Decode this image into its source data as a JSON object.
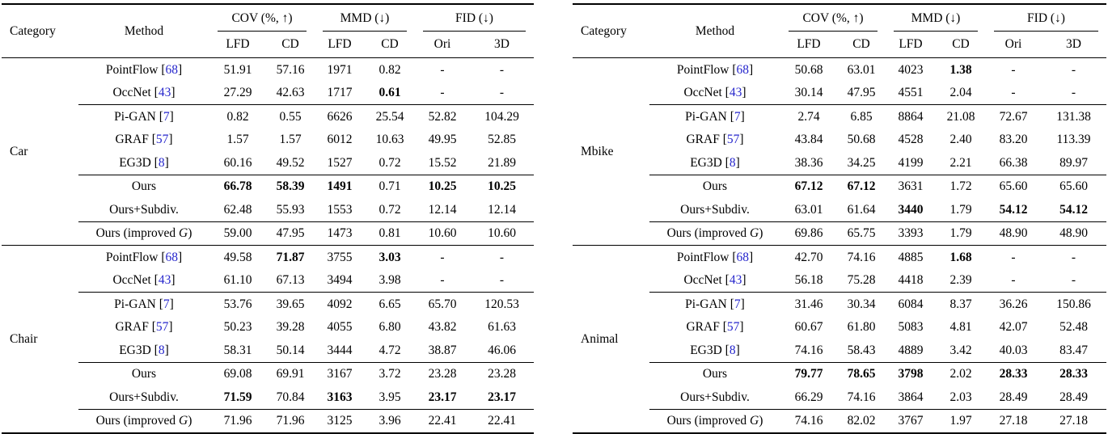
{
  "colors": {
    "citation": "#2626cc",
    "text": "#000000",
    "background": "#ffffff"
  },
  "header": {
    "category": "Category",
    "method": "Method",
    "groups": [
      {
        "label": "COV (%, ↑)"
      },
      {
        "label": "MMD (↓)"
      },
      {
        "label": "FID (↓)"
      }
    ],
    "subcols": [
      "LFD",
      "CD",
      "LFD",
      "CD",
      "Ori",
      "3D"
    ]
  },
  "tables": [
    {
      "name": "left",
      "sections": [
        {
          "category": "Car",
          "groups": [
            [
              {
                "method": "PointFlow",
                "ref": "68",
                "vals": [
                  "51.91",
                  "57.16",
                  "1971",
                  "0.82",
                  "-",
                  "-"
                ],
                "bold": []
              },
              {
                "method": "OccNet",
                "ref": "43",
                "vals": [
                  "27.29",
                  "42.63",
                  "1717",
                  "0.61",
                  "-",
                  "-"
                ],
                "bold": [
                  3
                ]
              }
            ],
            [
              {
                "method": "Pi-GAN",
                "ref": "7",
                "vals": [
                  "0.82",
                  "0.55",
                  "6626",
                  "25.54",
                  "52.82",
                  "104.29"
                ],
                "bold": []
              },
              {
                "method": "GRAF",
                "ref": "57",
                "vals": [
                  "1.57",
                  "1.57",
                  "6012",
                  "10.63",
                  "49.95",
                  "52.85"
                ],
                "bold": []
              },
              {
                "method": "EG3D",
                "ref": "8",
                "vals": [
                  "60.16",
                  "49.52",
                  "1527",
                  "0.72",
                  "15.52",
                  "21.89"
                ],
                "bold": []
              }
            ],
            [
              {
                "method": "Ours",
                "vals": [
                  "66.78",
                  "58.39",
                  "1491",
                  "0.71",
                  "10.25",
                  "10.25"
                ],
                "bold": [
                  0,
                  1,
                  2,
                  4,
                  5
                ]
              },
              {
                "method": "Ours+Subdiv.",
                "vals": [
                  "62.48",
                  "55.93",
                  "1553",
                  "0.72",
                  "12.14",
                  "12.14"
                ],
                "bold": []
              }
            ],
            [
              {
                "method": "Ours (improved G)",
                "gmath": true,
                "vals": [
                  "59.00",
                  "47.95",
                  "1473",
                  "0.81",
                  "10.60",
                  "10.60"
                ],
                "bold": []
              }
            ]
          ]
        },
        {
          "category": "Chair",
          "groups": [
            [
              {
                "method": "PointFlow",
                "ref": "68",
                "vals": [
                  "49.58",
                  "71.87",
                  "3755",
                  "3.03",
                  "-",
                  "-"
                ],
                "bold": [
                  1,
                  3
                ]
              },
              {
                "method": "OccNet",
                "ref": "43",
                "vals": [
                  "61.10",
                  "67.13",
                  "3494",
                  "3.98",
                  "-",
                  "-"
                ],
                "bold": []
              }
            ],
            [
              {
                "method": "Pi-GAN",
                "ref": "7",
                "vals": [
                  "53.76",
                  "39.65",
                  "4092",
                  "6.65",
                  "65.70",
                  "120.53"
                ],
                "bold": []
              },
              {
                "method": "GRAF",
                "ref": "57",
                "vals": [
                  "50.23",
                  "39.28",
                  "4055",
                  "6.80",
                  "43.82",
                  "61.63"
                ],
                "bold": []
              },
              {
                "method": "EG3D",
                "ref": "8",
                "vals": [
                  "58.31",
                  "50.14",
                  "3444",
                  "4.72",
                  "38.87",
                  "46.06"
                ],
                "bold": []
              }
            ],
            [
              {
                "method": "Ours",
                "vals": [
                  "69.08",
                  "69.91",
                  "3167",
                  "3.72",
                  "23.28",
                  "23.28"
                ],
                "bold": []
              },
              {
                "method": "Ours+Subdiv.",
                "vals": [
                  "71.59",
                  "70.84",
                  "3163",
                  "3.95",
                  "23.17",
                  "23.17"
                ],
                "bold": [
                  0,
                  2,
                  4,
                  5
                ]
              }
            ],
            [
              {
                "method": "Ours (improved G)",
                "gmath": true,
                "vals": [
                  "71.96",
                  "71.96",
                  "3125",
                  "3.96",
                  "22.41",
                  "22.41"
                ],
                "bold": []
              }
            ]
          ]
        }
      ]
    },
    {
      "name": "right",
      "sections": [
        {
          "category": "Mbike",
          "groups": [
            [
              {
                "method": "PointFlow",
                "ref": "68",
                "vals": [
                  "50.68",
                  "63.01",
                  "4023",
                  "1.38",
                  "-",
                  "-"
                ],
                "bold": [
                  3
                ]
              },
              {
                "method": "OccNet",
                "ref": "43",
                "vals": [
                  "30.14",
                  "47.95",
                  "4551",
                  "2.04",
                  "-",
                  "-"
                ],
                "bold": []
              }
            ],
            [
              {
                "method": "Pi-GAN",
                "ref": "7",
                "vals": [
                  "2.74",
                  "6.85",
                  "8864",
                  "21.08",
                  "72.67",
                  "131.38"
                ],
                "bold": []
              },
              {
                "method": "GRAF",
                "ref": "57",
                "vals": [
                  "43.84",
                  "50.68",
                  "4528",
                  "2.40",
                  "83.20",
                  "113.39"
                ],
                "bold": []
              },
              {
                "method": "EG3D",
                "ref": "8",
                "vals": [
                  "38.36",
                  "34.25",
                  "4199",
                  "2.21",
                  "66.38",
                  "89.97"
                ],
                "bold": []
              }
            ],
            [
              {
                "method": "Ours",
                "vals": [
                  "67.12",
                  "67.12",
                  "3631",
                  "1.72",
                  "65.60",
                  "65.60"
                ],
                "bold": [
                  0,
                  1
                ]
              },
              {
                "method": "Ours+Subdiv.",
                "vals": [
                  "63.01",
                  "61.64",
                  "3440",
                  "1.79",
                  "54.12",
                  "54.12"
                ],
                "bold": [
                  2,
                  4,
                  5
                ]
              }
            ],
            [
              {
                "method": "Ours (improved G)",
                "gmath": true,
                "vals": [
                  "69.86",
                  "65.75",
                  "3393",
                  "1.79",
                  "48.90",
                  "48.90"
                ],
                "bold": []
              }
            ]
          ]
        },
        {
          "category": "Animal",
          "groups": [
            [
              {
                "method": "PointFlow",
                "ref": "68",
                "vals": [
                  "42.70",
                  "74.16",
                  "4885",
                  "1.68",
                  "-",
                  "-"
                ],
                "bold": [
                  3
                ]
              },
              {
                "method": "OccNet",
                "ref": "43",
                "vals": [
                  "56.18",
                  "75.28",
                  "4418",
                  "2.39",
                  "-",
                  "-"
                ],
                "bold": []
              }
            ],
            [
              {
                "method": "Pi-GAN",
                "ref": "7",
                "vals": [
                  "31.46",
                  "30.34",
                  "6084",
                  "8.37",
                  "36.26",
                  "150.86"
                ],
                "bold": []
              },
              {
                "method": "GRAF",
                "ref": "57",
                "vals": [
                  "60.67",
                  "61.80",
                  "5083",
                  "4.81",
                  "42.07",
                  "52.48"
                ],
                "bold": []
              },
              {
                "method": "EG3D",
                "ref": "8",
                "vals": [
                  "74.16",
                  "58.43",
                  "4889",
                  "3.42",
                  "40.03",
                  "83.47"
                ],
                "bold": []
              }
            ],
            [
              {
                "method": "Ours",
                "vals": [
                  "79.77",
                  "78.65",
                  "3798",
                  "2.02",
                  "28.33",
                  "28.33"
                ],
                "bold": [
                  0,
                  1,
                  2,
                  4,
                  5
                ]
              },
              {
                "method": "Ours+Subdiv.",
                "vals": [
                  "66.29",
                  "74.16",
                  "3864",
                  "2.03",
                  "28.49",
                  "28.49"
                ],
                "bold": []
              }
            ],
            [
              {
                "method": "Ours (improved G)",
                "gmath": true,
                "vals": [
                  "74.16",
                  "82.02",
                  "3767",
                  "1.97",
                  "27.18",
                  "27.18"
                ],
                "bold": []
              }
            ]
          ]
        }
      ]
    }
  ]
}
